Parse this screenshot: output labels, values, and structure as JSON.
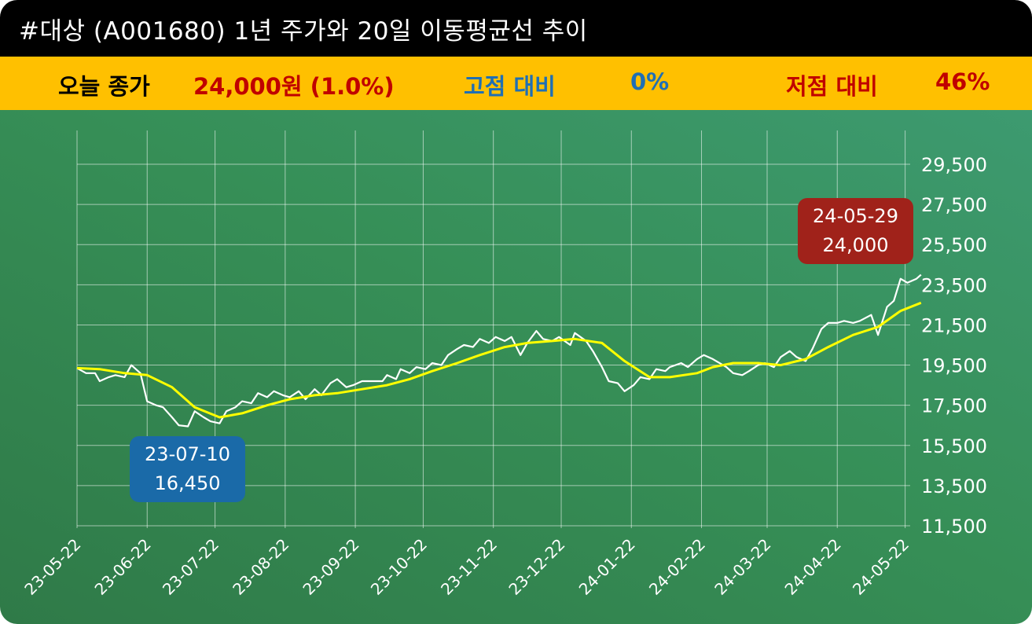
{
  "title": "#대상 (A001680) 1년 주가와 20일 이동평균선 추이",
  "info": {
    "close_label": "오늘 종가",
    "close_value": "24,000원 (1.0%)",
    "high_label": "고점 대비",
    "high_value": "0%",
    "low_label": "저점 대비",
    "low_value": "46%"
  },
  "colors": {
    "title_bg": "#000000",
    "info_bg": "#FFC000",
    "close_value": "#C00000",
    "high": "#1F6FB5",
    "low": "#C00000",
    "price_line": "#FFFFFF",
    "ma_line": "#FFFF00",
    "low_callout": "#1A6AA8",
    "high_callout": "#A0221A"
  },
  "callouts": {
    "low": {
      "date": "23-07-10",
      "value": "16,450"
    },
    "high": {
      "date": "24-05-29",
      "value": "24,000"
    }
  },
  "chart_data": {
    "type": "line",
    "xlabel": "",
    "ylabel": "",
    "ylim": [
      11500,
      29500
    ],
    "yticks": [
      11500,
      13500,
      15500,
      17500,
      19500,
      21500,
      23500,
      25500,
      27500,
      29500
    ],
    "ytick_labels": [
      "11,500",
      "13,500",
      "15,500",
      "17,500",
      "19,500",
      "21,500",
      "23,500",
      "25,500",
      "27,500",
      "29,500"
    ],
    "x_start": "23-05-22",
    "x_end": "24-05-29",
    "xticks": [
      "23-05-22",
      "23-06-22",
      "23-07-22",
      "23-08-22",
      "23-09-22",
      "23-10-22",
      "23-11-22",
      "23-12-22",
      "24-01-22",
      "24-02-22",
      "24-03-22",
      "24-04-22",
      "24-05-22"
    ],
    "grid": true,
    "series": [
      {
        "points": [
          [
            "23-05-22",
            19350
          ],
          [
            "23-05-26",
            19100
          ],
          [
            "23-05-30",
            19100
          ],
          [
            "23-06-01",
            18700
          ],
          [
            "23-06-05",
            18900
          ],
          [
            "23-06-08",
            19000
          ],
          [
            "23-06-12",
            18900
          ],
          [
            "23-06-15",
            19500
          ],
          [
            "23-06-19",
            19100
          ],
          [
            "23-06-22",
            17700
          ],
          [
            "23-06-26",
            17500
          ],
          [
            "23-06-29",
            17400
          ],
          [
            "23-07-03",
            16900
          ],
          [
            "23-07-06",
            16500
          ],
          [
            "23-07-10",
            16450
          ],
          [
            "23-07-13",
            17200
          ],
          [
            "23-07-17",
            16900
          ],
          [
            "23-07-20",
            16700
          ],
          [
            "23-07-24",
            16600
          ],
          [
            "23-07-27",
            17200
          ],
          [
            "23-07-31",
            17400
          ],
          [
            "23-08-03",
            17700
          ],
          [
            "23-08-07",
            17600
          ],
          [
            "23-08-10",
            18100
          ],
          [
            "23-08-14",
            17900
          ],
          [
            "23-08-17",
            18200
          ],
          [
            "23-08-21",
            18000
          ],
          [
            "23-08-24",
            17900
          ],
          [
            "23-08-28",
            18200
          ],
          [
            "23-08-31",
            17800
          ],
          [
            "23-09-04",
            18300
          ],
          [
            "23-09-07",
            18000
          ],
          [
            "23-09-11",
            18600
          ],
          [
            "23-09-14",
            18800
          ],
          [
            "23-09-18",
            18400
          ],
          [
            "23-09-21",
            18500
          ],
          [
            "23-09-25",
            18700
          ],
          [
            "23-10-04",
            18700
          ],
          [
            "23-10-06",
            19000
          ],
          [
            "23-10-10",
            18800
          ],
          [
            "23-10-12",
            19300
          ],
          [
            "23-10-16",
            19100
          ],
          [
            "23-10-19",
            19400
          ],
          [
            "23-10-23",
            19300
          ],
          [
            "23-10-26",
            19600
          ],
          [
            "23-10-30",
            19500
          ],
          [
            "23-11-02",
            20000
          ],
          [
            "23-11-06",
            20300
          ],
          [
            "23-11-09",
            20500
          ],
          [
            "23-11-13",
            20400
          ],
          [
            "23-11-16",
            20800
          ],
          [
            "23-11-20",
            20600
          ],
          [
            "23-11-23",
            20900
          ],
          [
            "23-11-27",
            20700
          ],
          [
            "23-11-30",
            20900
          ],
          [
            "23-12-04",
            20000
          ],
          [
            "23-12-07",
            20600
          ],
          [
            "23-12-11",
            21200
          ],
          [
            "23-12-14",
            20800
          ],
          [
            "23-12-18",
            20700
          ],
          [
            "23-12-21",
            20900
          ],
          [
            "23-12-26",
            20500
          ],
          [
            "23-12-28",
            21100
          ],
          [
            "24-01-02",
            20700
          ],
          [
            "24-01-05",
            20200
          ],
          [
            "24-01-09",
            19400
          ],
          [
            "24-01-12",
            18700
          ],
          [
            "24-01-16",
            18600
          ],
          [
            "24-01-19",
            18200
          ],
          [
            "24-01-23",
            18500
          ],
          [
            "24-01-26",
            18900
          ],
          [
            "24-01-30",
            18800
          ],
          [
            "24-02-02",
            19300
          ],
          [
            "24-02-06",
            19200
          ],
          [
            "24-02-08",
            19400
          ],
          [
            "24-02-13",
            19600
          ],
          [
            "24-02-16",
            19400
          ],
          [
            "24-02-20",
            19800
          ],
          [
            "24-02-23",
            20000
          ],
          [
            "24-02-27",
            19800
          ],
          [
            "24-03-04",
            19400
          ],
          [
            "24-03-07",
            19100
          ],
          [
            "24-03-11",
            19000
          ],
          [
            "24-03-14",
            19200
          ],
          [
            "24-03-18",
            19500
          ],
          [
            "24-03-21",
            19600
          ],
          [
            "24-03-25",
            19400
          ],
          [
            "24-03-28",
            19900
          ],
          [
            "24-04-01",
            20200
          ],
          [
            "24-04-04",
            19900
          ],
          [
            "24-04-08",
            19700
          ],
          [
            "24-04-11",
            20300
          ],
          [
            "24-04-15",
            21300
          ],
          [
            "24-04-18",
            21600
          ],
          [
            "24-04-22",
            21600
          ],
          [
            "24-04-25",
            21700
          ],
          [
            "24-04-29",
            21600
          ],
          [
            "24-05-02",
            21700
          ],
          [
            "24-05-07",
            22000
          ],
          [
            "24-05-10",
            21000
          ],
          [
            "24-05-14",
            22400
          ],
          [
            "24-05-17",
            22700
          ],
          [
            "24-05-20",
            23800
          ],
          [
            "24-05-23",
            23600
          ],
          [
            "24-05-27",
            23800
          ],
          [
            "24-05-29",
            24000
          ]
        ]
      },
      {
        "points": [
          [
            "23-05-22",
            19350
          ],
          [
            "23-06-01",
            19300
          ],
          [
            "23-06-12",
            19100
          ],
          [
            "23-06-22",
            19000
          ],
          [
            "23-07-03",
            18400
          ],
          [
            "23-07-13",
            17400
          ],
          [
            "23-07-24",
            16900
          ],
          [
            "23-08-03",
            17100
          ],
          [
            "23-08-14",
            17500
          ],
          [
            "23-08-24",
            17800
          ],
          [
            "23-09-04",
            18000
          ],
          [
            "23-09-14",
            18100
          ],
          [
            "23-09-25",
            18300
          ],
          [
            "23-10-06",
            18500
          ],
          [
            "23-10-16",
            18800
          ],
          [
            "23-10-26",
            19200
          ],
          [
            "23-11-06",
            19600
          ],
          [
            "23-11-16",
            20000
          ],
          [
            "23-11-27",
            20400
          ],
          [
            "23-12-07",
            20600
          ],
          [
            "23-12-18",
            20700
          ],
          [
            "23-12-28",
            20800
          ],
          [
            "24-01-09",
            20600
          ],
          [
            "24-01-19",
            19700
          ],
          [
            "24-01-30",
            18900
          ],
          [
            "24-02-08",
            18900
          ],
          [
            "24-02-20",
            19100
          ],
          [
            "24-02-27",
            19400
          ],
          [
            "24-03-07",
            19600
          ],
          [
            "24-03-18",
            19600
          ],
          [
            "24-03-28",
            19500
          ],
          [
            "24-04-08",
            19800
          ],
          [
            "24-04-18",
            20400
          ],
          [
            "24-04-29",
            21000
          ],
          [
            "24-05-10",
            21400
          ],
          [
            "24-05-20",
            22200
          ],
          [
            "24-05-29",
            22600
          ]
        ]
      }
    ]
  }
}
